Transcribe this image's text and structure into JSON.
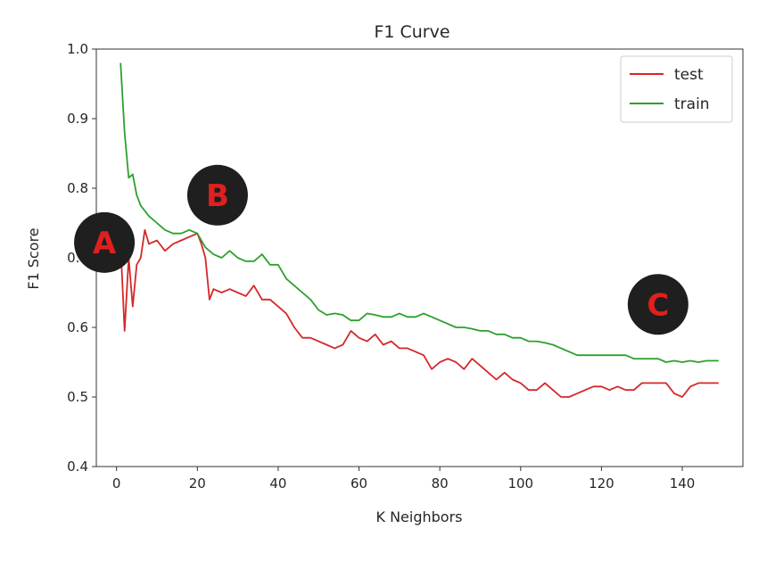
{
  "chart_data": {
    "type": "line",
    "title": "F1 Curve",
    "xlabel": "K Neighbors",
    "ylabel": "F1 Score",
    "xlim": [
      -5,
      155
    ],
    "ylim": [
      0.4,
      1.0
    ],
    "xticks": [
      0,
      20,
      40,
      60,
      80,
      100,
      120,
      140
    ],
    "yticks": [
      0.4,
      0.5,
      0.6,
      0.7,
      0.8,
      0.9,
      1.0
    ],
    "grid": false,
    "legend_position": "top-right",
    "series": [
      {
        "name": "test",
        "color": "#d62728",
        "x": [
          1,
          2,
          3,
          4,
          5,
          6,
          7,
          8,
          10,
          12,
          14,
          16,
          18,
          20,
          21,
          22,
          23,
          24,
          26,
          28,
          30,
          32,
          34,
          36,
          38,
          40,
          42,
          44,
          46,
          48,
          50,
          52,
          54,
          56,
          58,
          60,
          62,
          64,
          66,
          68,
          70,
          72,
          74,
          76,
          78,
          80,
          82,
          84,
          86,
          88,
          90,
          92,
          94,
          96,
          98,
          100,
          102,
          104,
          106,
          108,
          110,
          112,
          114,
          116,
          118,
          120,
          122,
          124,
          126,
          128,
          130,
          132,
          134,
          136,
          138,
          140,
          142,
          144,
          146,
          148,
          149
        ],
        "values": [
          0.72,
          0.595,
          0.7,
          0.63,
          0.69,
          0.7,
          0.74,
          0.72,
          0.725,
          0.71,
          0.72,
          0.725,
          0.73,
          0.735,
          0.72,
          0.7,
          0.64,
          0.655,
          0.65,
          0.655,
          0.65,
          0.645,
          0.66,
          0.64,
          0.64,
          0.63,
          0.62,
          0.6,
          0.585,
          0.585,
          0.58,
          0.575,
          0.57,
          0.575,
          0.595,
          0.585,
          0.58,
          0.59,
          0.575,
          0.58,
          0.57,
          0.57,
          0.565,
          0.56,
          0.54,
          0.55,
          0.555,
          0.55,
          0.54,
          0.555,
          0.545,
          0.535,
          0.525,
          0.535,
          0.525,
          0.52,
          0.51,
          0.51,
          0.52,
          0.51,
          0.5,
          0.5,
          0.505,
          0.51,
          0.515,
          0.515,
          0.51,
          0.515,
          0.51,
          0.51,
          0.52,
          0.52,
          0.52,
          0.52,
          0.505,
          0.5,
          0.515,
          0.52,
          0.52,
          0.52,
          0.52
        ]
      },
      {
        "name": "train",
        "color": "#2ca02c",
        "x": [
          1,
          2,
          3,
          4,
          5,
          6,
          8,
          10,
          12,
          14,
          16,
          18,
          20,
          22,
          24,
          26,
          28,
          30,
          32,
          34,
          36,
          38,
          40,
          42,
          44,
          46,
          48,
          50,
          52,
          54,
          56,
          58,
          60,
          62,
          64,
          66,
          68,
          70,
          72,
          74,
          76,
          78,
          80,
          82,
          84,
          86,
          88,
          90,
          92,
          94,
          96,
          98,
          100,
          102,
          104,
          106,
          108,
          110,
          112,
          114,
          116,
          118,
          120,
          122,
          124,
          126,
          128,
          130,
          132,
          134,
          136,
          138,
          140,
          142,
          144,
          146,
          148,
          149
        ],
        "values": [
          0.98,
          0.88,
          0.815,
          0.82,
          0.79,
          0.775,
          0.76,
          0.75,
          0.74,
          0.735,
          0.735,
          0.74,
          0.735,
          0.715,
          0.705,
          0.7,
          0.71,
          0.7,
          0.695,
          0.695,
          0.705,
          0.69,
          0.69,
          0.67,
          0.66,
          0.65,
          0.64,
          0.625,
          0.618,
          0.62,
          0.618,
          0.61,
          0.61,
          0.62,
          0.618,
          0.615,
          0.615,
          0.62,
          0.615,
          0.615,
          0.62,
          0.615,
          0.61,
          0.605,
          0.6,
          0.6,
          0.598,
          0.595,
          0.595,
          0.59,
          0.59,
          0.585,
          0.585,
          0.58,
          0.58,
          0.578,
          0.575,
          0.57,
          0.565,
          0.56,
          0.56,
          0.56,
          0.56,
          0.56,
          0.56,
          0.56,
          0.555,
          0.555,
          0.555,
          0.555,
          0.55,
          0.552,
          0.55,
          0.552,
          0.55,
          0.552,
          0.552,
          0.552
        ]
      }
    ],
    "annotations": [
      {
        "text": "A",
        "x": -3,
        "y": 0.722
      },
      {
        "text": "B",
        "x": 25,
        "y": 0.79
      },
      {
        "text": "C",
        "x": 134,
        "y": 0.633
      }
    ]
  }
}
